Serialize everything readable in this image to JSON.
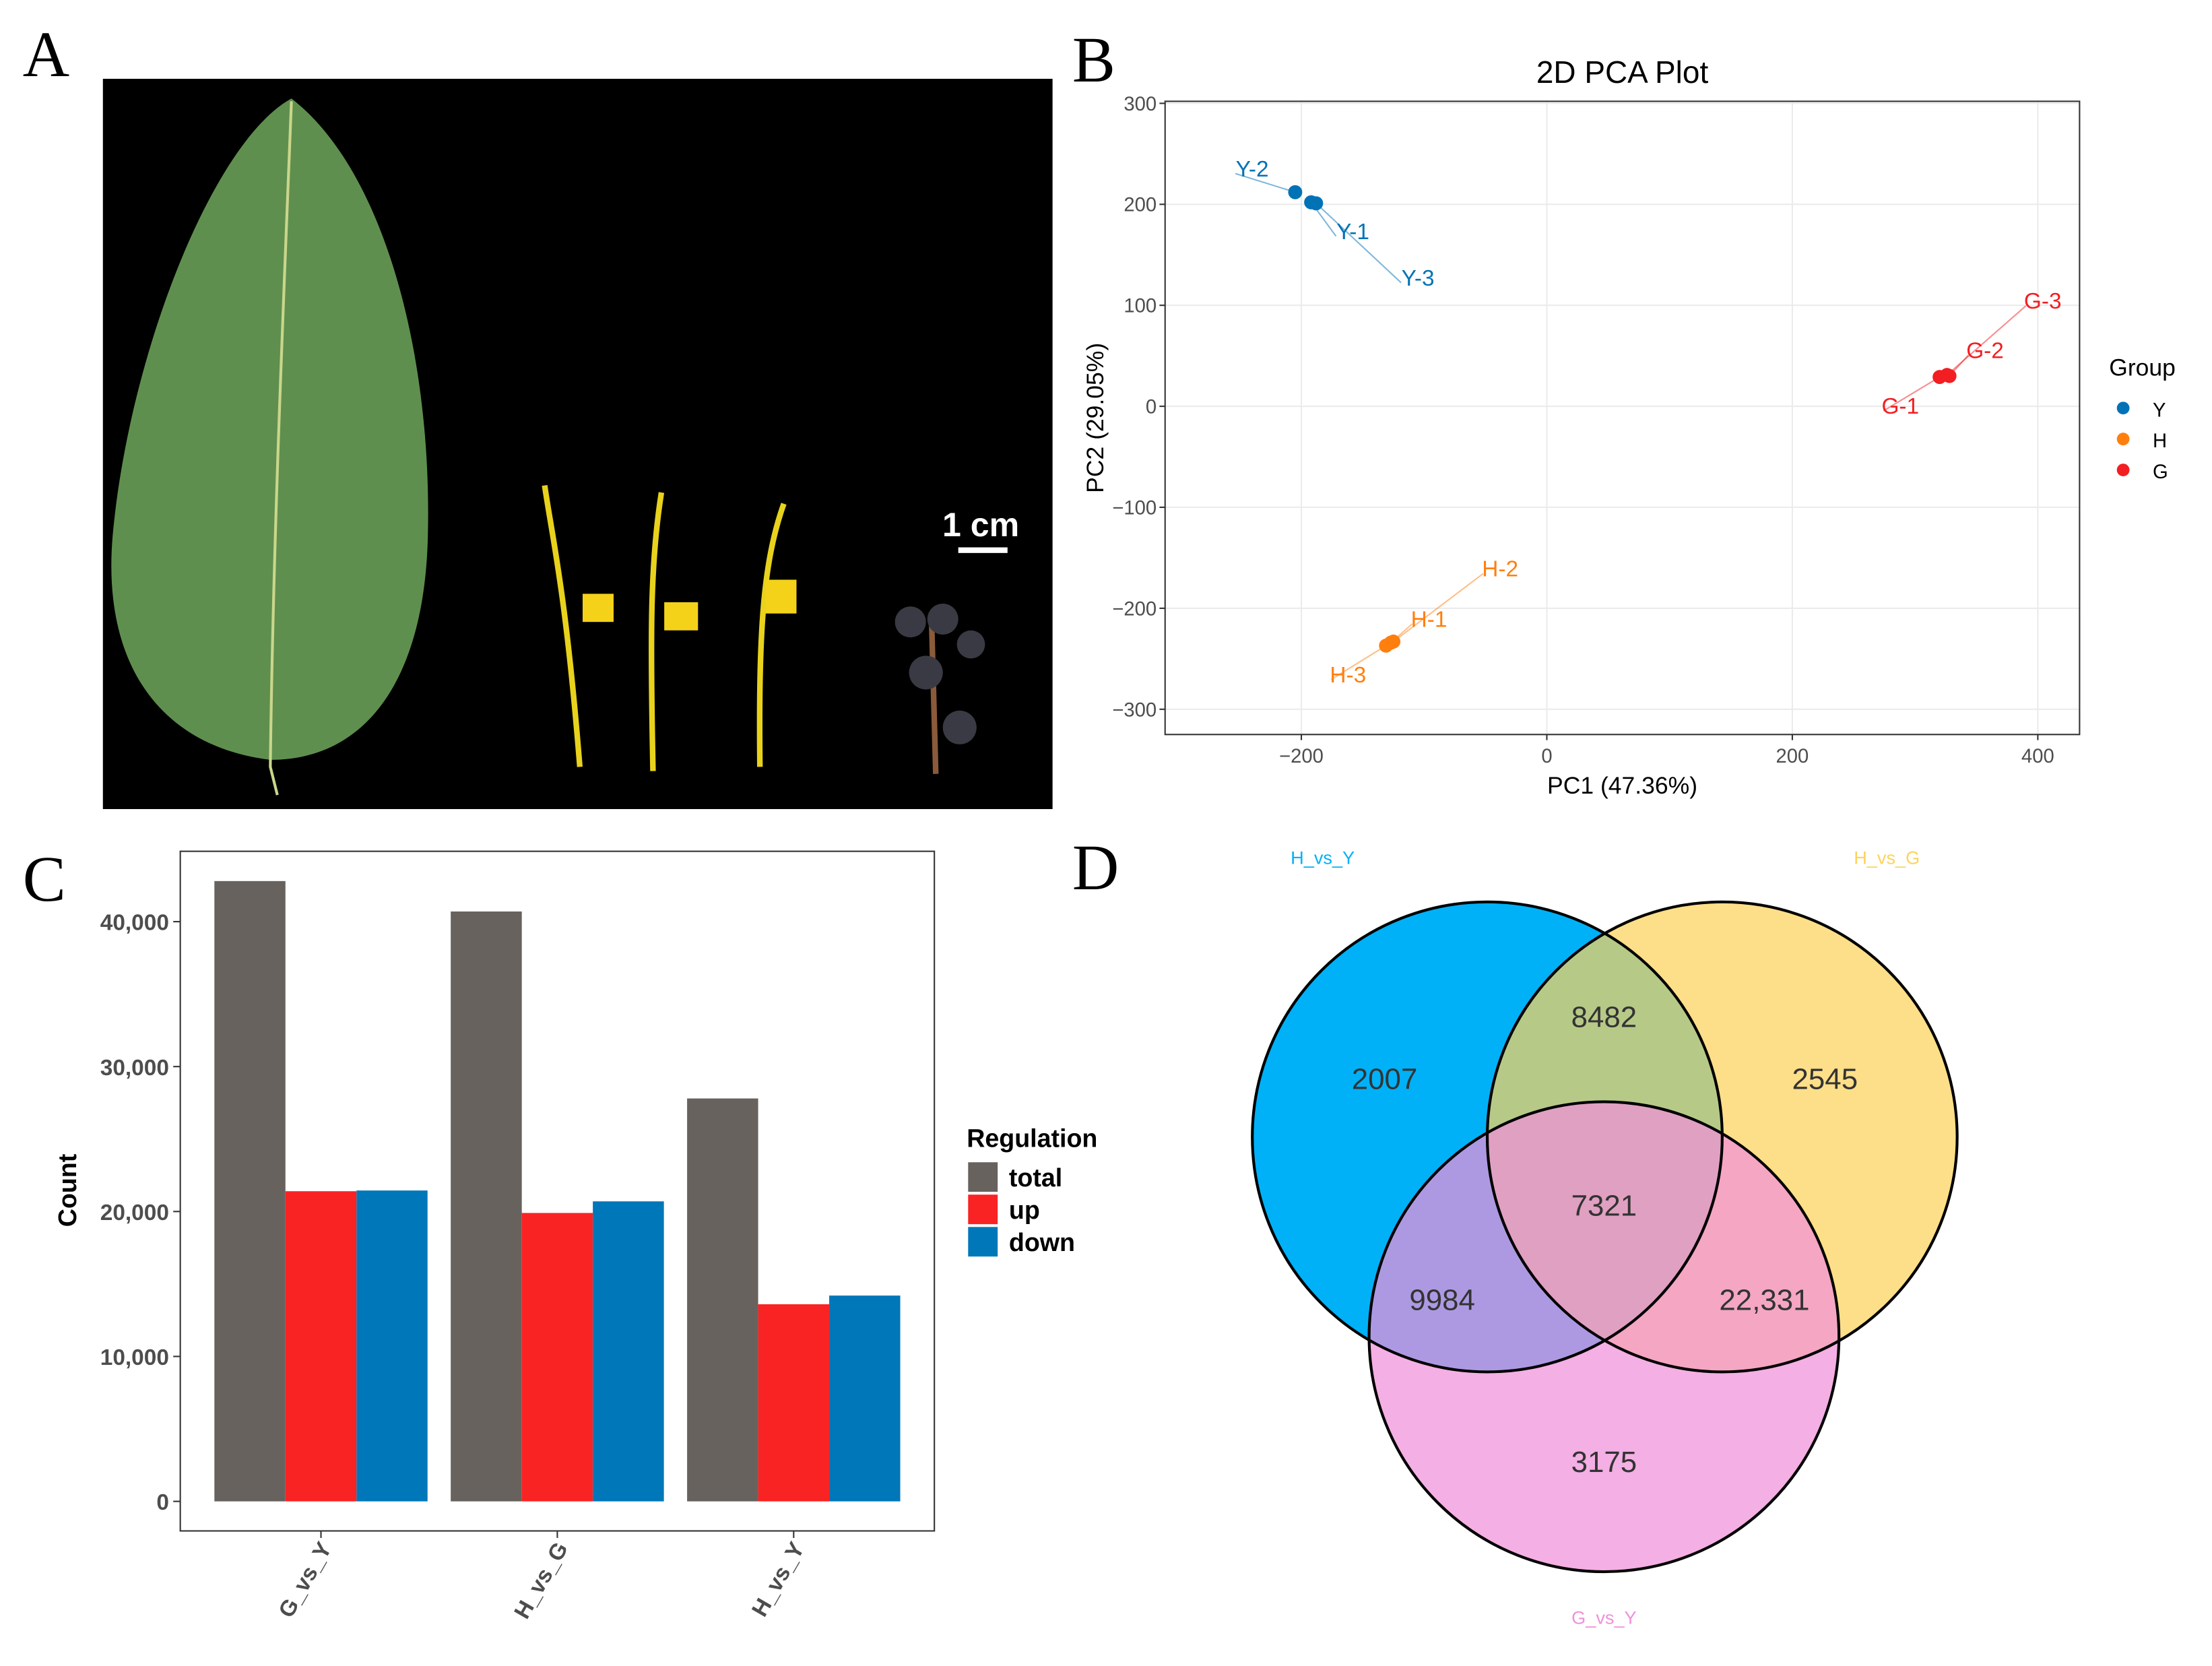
{
  "panels": {
    "a": "A",
    "b": "B",
    "c": "C",
    "d": "D"
  },
  "photo": {
    "scale_bar_label": "1 cm"
  },
  "chart_data": [
    {
      "type": "scatter",
      "title": "2D PCA Plot",
      "xlabel": "PC1 (47.36%)",
      "ylabel": "PC2 (29.05%)",
      "xlim": [
        -311,
        434
      ],
      "ylim": [
        -325,
        302
      ],
      "xticks": [
        -200,
        0,
        200,
        400
      ],
      "xtick_labels": [
        "−200",
        "0",
        "200",
        "400"
      ],
      "yticks": [
        300,
        200,
        100,
        0,
        -100,
        -200,
        -300
      ],
      "ytick_labels": [
        "300",
        "200",
        "100",
        "0",
        "−100",
        "−200",
        "−300"
      ],
      "grid": true,
      "legend": {
        "title": "Group",
        "placement": "right",
        "entries": [
          "Y",
          "H",
          "G"
        ]
      },
      "series": [
        {
          "name": "Y",
          "color": "#0072b5",
          "points": [
            {
              "label": "Y-2",
              "x": -205,
              "y": 212,
              "lx": -240,
              "ly": 236
            },
            {
              "label": "Y-1",
              "x": -192,
              "y": 202,
              "lx": -158,
              "ly": 174
            },
            {
              "label": "Y-3",
              "x": -188,
              "y": 201,
              "lx": -105,
              "ly": 128
            }
          ]
        },
        {
          "name": "H",
          "color": "#ff7f0e",
          "points": [
            {
              "label": "H-3",
              "x": -131,
              "y": -237,
              "lx": -162,
              "ly": -265
            },
            {
              "label": "H-1",
              "x": -127,
              "y": -234,
              "lx": -96,
              "ly": -210
            },
            {
              "label": "H-2",
              "x": -125,
              "y": -233,
              "lx": -38,
              "ly": -160
            }
          ]
        },
        {
          "name": "G",
          "color": "#f21e22",
          "points": [
            {
              "label": "G-1",
              "x": 320,
              "y": 29,
              "lx": 288,
              "ly": 1
            },
            {
              "label": "G-2",
              "x": 328,
              "y": 30,
              "lx": 357,
              "ly": 56
            },
            {
              "label": "G-3",
              "x": 326,
              "y": 31,
              "lx": 404,
              "ly": 105
            }
          ]
        }
      ]
    },
    {
      "type": "bar",
      "title": "",
      "xlabel": "",
      "ylabel": "Count",
      "ylim": [
        0,
        44000
      ],
      "yticks": [
        0,
        10000,
        20000,
        30000,
        40000
      ],
      "ytick_labels": [
        "0",
        "10,000",
        "20,000",
        "30,000",
        "40,000"
      ],
      "categories": [
        "G_vs_Y",
        "H_vs_G",
        "H_vs_Y"
      ],
      "legend": {
        "title": "Regulation",
        "placement": "right"
      },
      "series": [
        {
          "name": "total",
          "color": "#67625e",
          "values": [
            42800,
            40700,
            27800
          ]
        },
        {
          "name": "up",
          "color": "#f92324",
          "values": [
            21400,
            19900,
            13600
          ]
        },
        {
          "name": "down",
          "color": "#0077b8",
          "values": [
            21450,
            20700,
            14200
          ]
        }
      ]
    },
    {
      "type": "venn",
      "sets": [
        {
          "name": "H_vs_Y",
          "color": "#00b1f7"
        },
        {
          "name": "H_vs_G",
          "color": "#fdd35c"
        },
        {
          "name": "G_vs_Y",
          "color": "#f090d9"
        }
      ],
      "regions": [
        {
          "sets": [
            "H_vs_Y"
          ],
          "value": "2007"
        },
        {
          "sets": [
            "H_vs_G"
          ],
          "value": "2545"
        },
        {
          "sets": [
            "G_vs_Y"
          ],
          "value": "3175"
        },
        {
          "sets": [
            "H_vs_Y",
            "H_vs_G"
          ],
          "value": "8482"
        },
        {
          "sets": [
            "H_vs_Y",
            "G_vs_Y"
          ],
          "value": "9984"
        },
        {
          "sets": [
            "H_vs_G",
            "G_vs_Y"
          ],
          "value": "22,331"
        },
        {
          "sets": [
            "H_vs_Y",
            "H_vs_G",
            "G_vs_Y"
          ],
          "value": "7321"
        }
      ]
    }
  ]
}
